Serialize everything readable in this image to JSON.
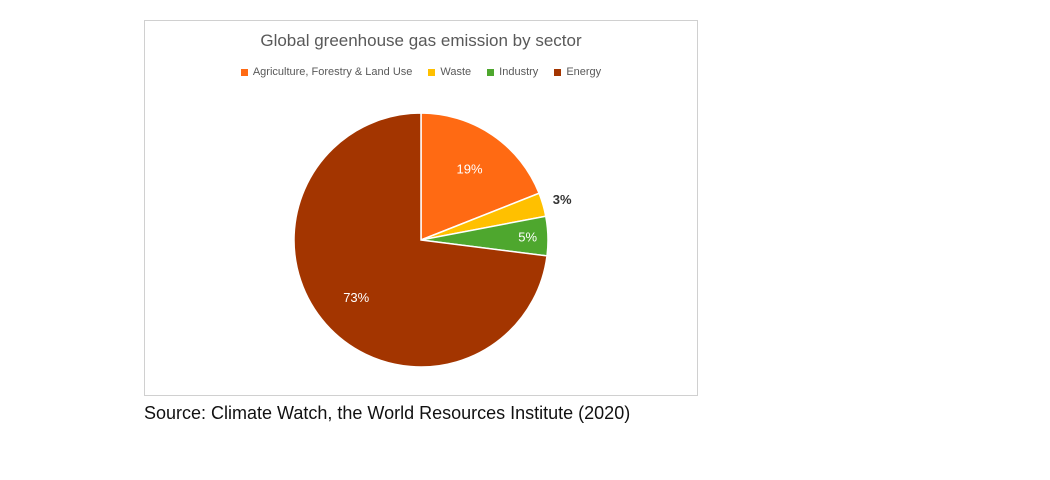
{
  "chart_data": {
    "type": "pie",
    "title": "Global greenhouse gas emission by sector",
    "categories": [
      "Agriculture, Forestry & Land Use",
      "Waste",
      "Industry",
      "Energy"
    ],
    "values": [
      19,
      3,
      5,
      73
    ],
    "value_labels": [
      "19%",
      "3%",
      "5%",
      "73%"
    ],
    "colors": [
      "#FF6A13",
      "#FFC000",
      "#4EA72E",
      "#A33500"
    ],
    "label_colors": [
      "#ffffff",
      "#333333",
      "#ffffff",
      "#ffffff"
    ],
    "start_angle_deg": 0,
    "direction": "clockwise",
    "legend_position": "top"
  },
  "source": "Source: Climate Watch, the World Resources Institute (2020)"
}
